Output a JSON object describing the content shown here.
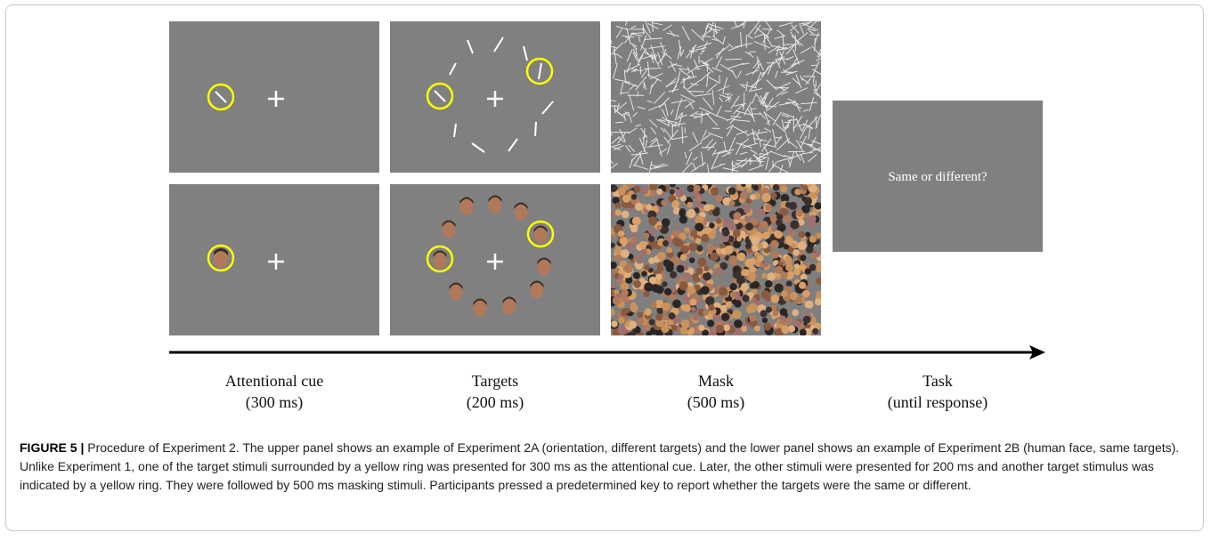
{
  "figure": {
    "panels": {
      "task_prompt": "Same or different?"
    },
    "timeline": [
      {
        "label": "Attentional cue",
        "duration": "(300 ms)"
      },
      {
        "label": "Targets",
        "duration": "(200 ms)"
      },
      {
        "label": "Mask",
        "duration": "(500 ms)"
      },
      {
        "label": "Task",
        "duration": "(until response)"
      }
    ],
    "colors": {
      "panel_gray": "#808080",
      "cue_ring": "#ffff00",
      "arrow": "#000000"
    }
  },
  "caption": {
    "label": "FIGURE 5 |",
    "text": "Procedure of Experiment 2. The upper panel shows an example of Experiment 2A (orientation, different targets) and the lower panel shows an example of Experiment 2B (human face, same targets). Unlike Experiment 1, one of the target stimuli surrounded by a yellow ring was presented for 300 ms as the attentional cue. Later, the other stimuli were presented for 200 ms and another target stimulus was indicated by a yellow ring. They were followed by 500 ms masking stimuli. Participants pressed a predetermined key to report whether the targets were the same or different."
  }
}
